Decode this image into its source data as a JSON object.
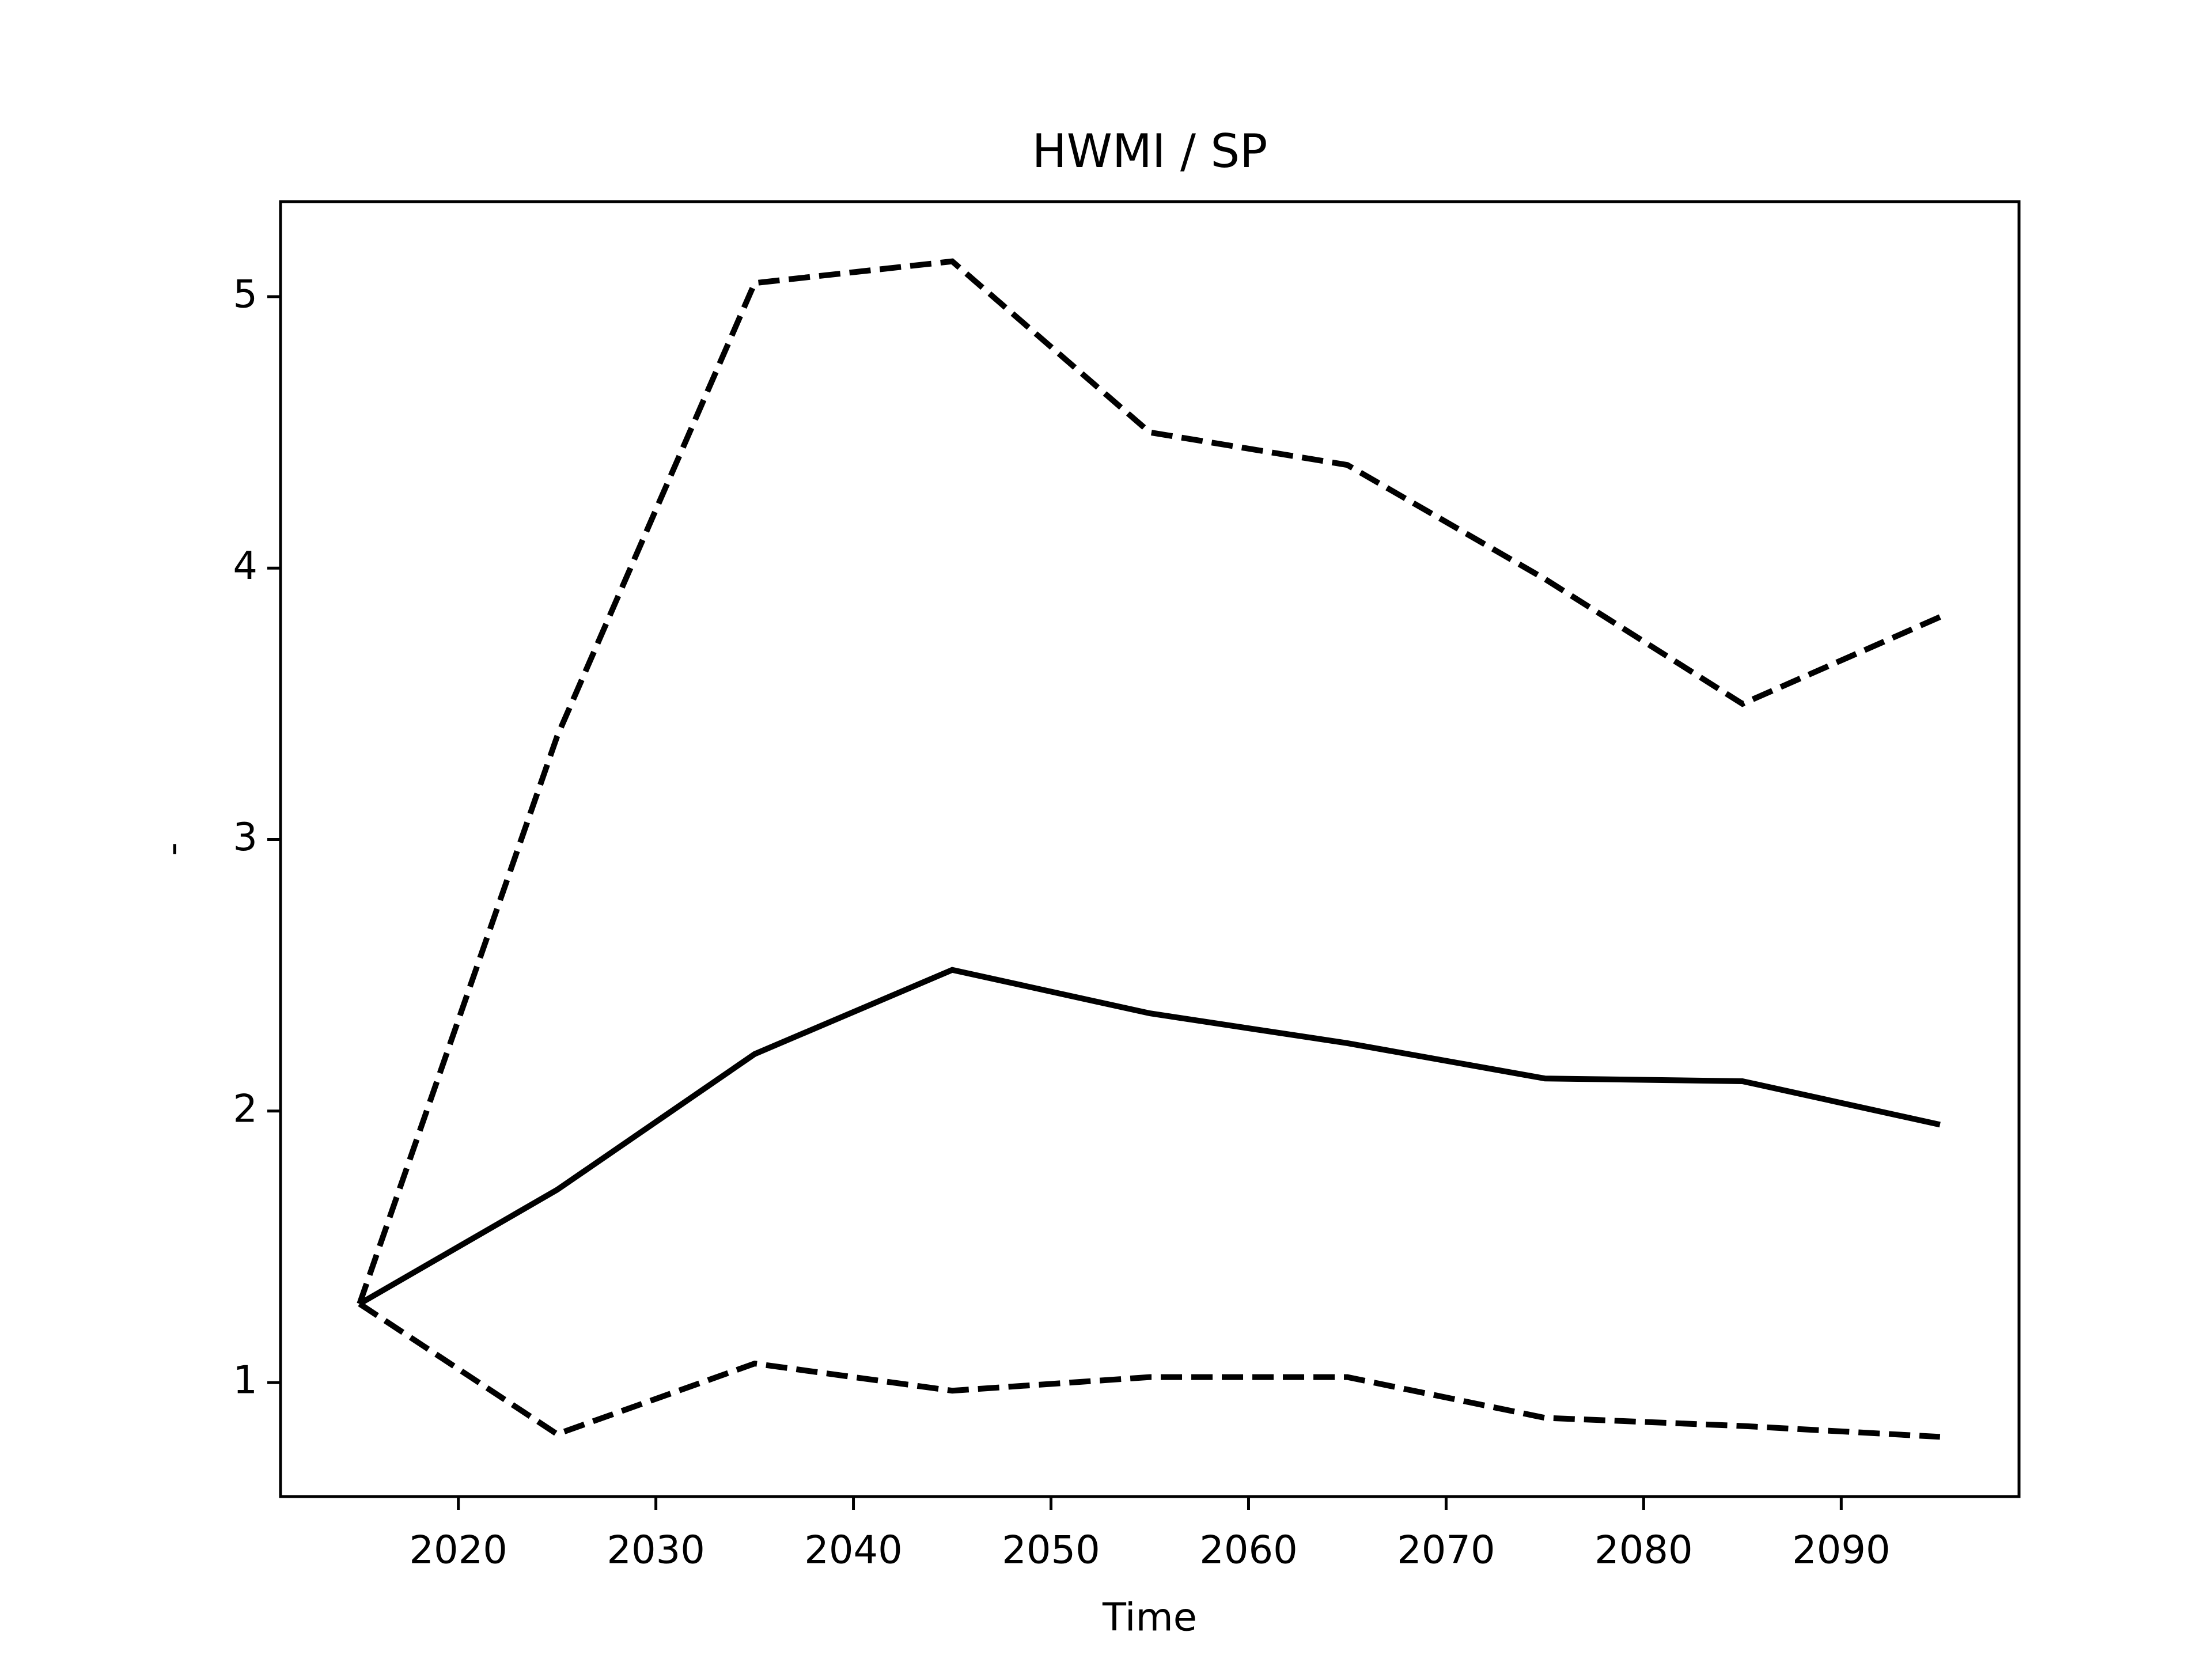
{
  "chart_data": {
    "type": "line",
    "title": "HWMI / SP",
    "xlabel": "Time",
    "ylabel": "-",
    "x": [
      2015,
      2025,
      2035,
      2045,
      2055,
      2065,
      2075,
      2085,
      2095
    ],
    "series": [
      {
        "color": "#000000",
        "linestyle": "solid",
        "values": [
          1.29,
          1.71,
          2.21,
          2.52,
          2.36,
          2.25,
          2.12,
          2.11,
          1.95
        ]
      },
      {
        "color": "#000000",
        "linestyle": "dashed",
        "values": [
          1.29,
          3.38,
          5.05,
          5.13,
          4.5,
          4.38,
          3.96,
          3.5,
          3.82
        ]
      },
      {
        "color": "#000000",
        "linestyle": "dashed",
        "values": [
          1.29,
          0.81,
          1.07,
          0.97,
          1.02,
          1.02,
          0.87,
          0.84,
          0.8
        ]
      }
    ],
    "xlim": [
      2011,
      2099
    ],
    "xticks": [
      2020,
      2030,
      2040,
      2050,
      2060,
      2070,
      2080,
      2090
    ],
    "ylim": [
      0.58,
      5.35
    ],
    "yticks": [
      1,
      2,
      3,
      4,
      5
    ],
    "grid": false
  }
}
